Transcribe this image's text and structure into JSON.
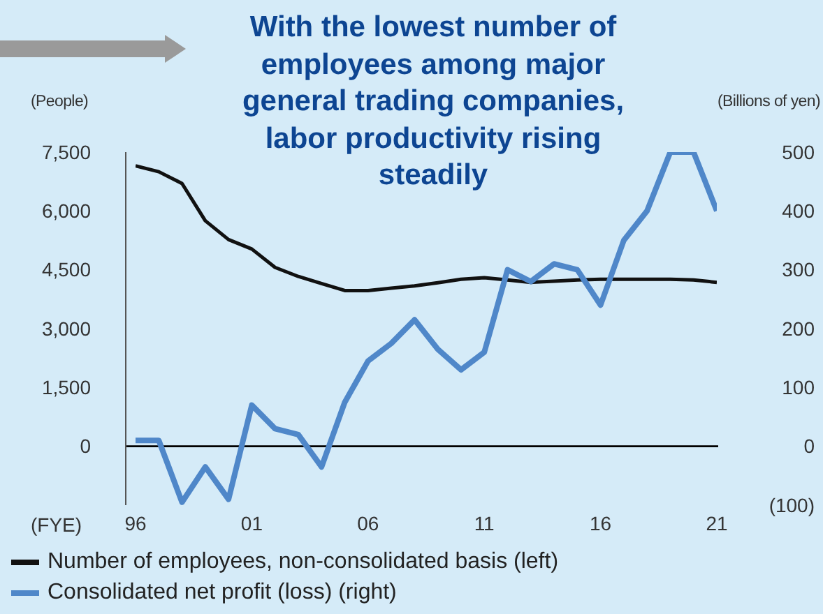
{
  "chart_data": {
    "type": "line",
    "title": "With the lowest number of employees among major general trading companies, labor productivity rising steadily",
    "xlabel": "(FYE)",
    "ylabel": "(People)",
    "y2label": "(Billions of yen)",
    "categories": [
      "96",
      null,
      null,
      null,
      null,
      "01",
      null,
      null,
      null,
      null,
      "06",
      null,
      null,
      null,
      null,
      "11",
      null,
      null,
      null,
      null,
      "16",
      null,
      null,
      null,
      null,
      "21"
    ],
    "series": [
      {
        "name": "Number of employees, non-consolidated basis (left)",
        "color": "#111111",
        "axis": "y",
        "values": [
          7150,
          7000,
          6700,
          5750,
          5270,
          5030,
          4560,
          4330,
          4150,
          3970,
          3970,
          4030,
          4090,
          4170,
          4260,
          4300,
          4240,
          4180,
          4210,
          4240,
          4260,
          4260,
          4260,
          4260,
          4240,
          4180
        ]
      },
      {
        "name": "Consolidated net profit (loss) (right)",
        "color": "#4f87c9",
        "axis": "y2",
        "values": [
          10,
          10,
          -95,
          -35,
          -90,
          70,
          30,
          20,
          -35,
          75,
          145,
          175,
          215,
          165,
          130,
          160,
          300,
          280,
          310,
          300,
          240,
          350,
          400,
          500,
          500,
          400
        ]
      }
    ],
    "ylim": [
      -1500,
      7500
    ],
    "yticks": [
      0,
      {
        "value": 1500,
        "label": "1,500"
      },
      {
        "value": 3000,
        "label": "3,000"
      },
      {
        "value": 4500,
        "label": "4,500"
      },
      {
        "value": 6000,
        "label": "6,000"
      },
      {
        "value": 7500,
        "label": "7,500"
      }
    ],
    "y2lim": [
      -100,
      500
    ],
    "y2ticks": [
      {
        "value": -100,
        "label": "(100)"
      },
      0,
      100,
      200,
      300,
      400,
      500
    ],
    "ref_lines": [
      {
        "axis": "y",
        "value": 0,
        "color": "#000000"
      }
    ],
    "legend": "bottom"
  }
}
